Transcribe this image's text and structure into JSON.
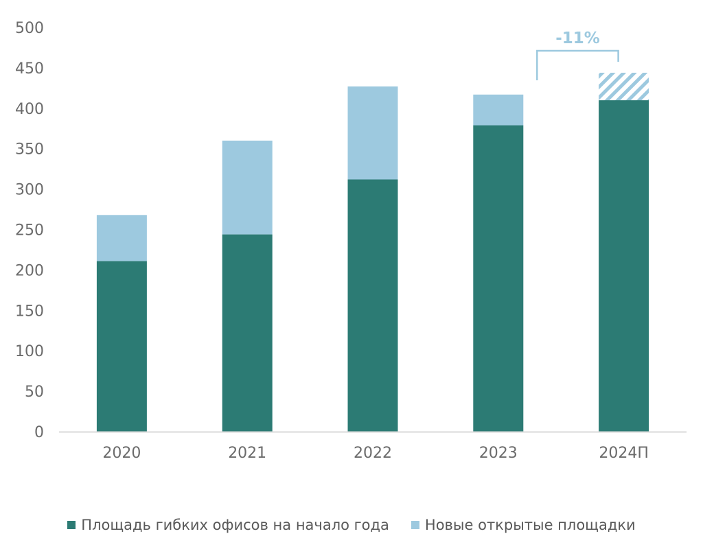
{
  "chart_data": {
    "type": "bar",
    "stacked": true,
    "categories": [
      "2020",
      "2021",
      "2022",
      "2023",
      "2024П"
    ],
    "series": [
      {
        "name": "Площадь гибких офисов на начало года",
        "values": [
          211,
          244,
          312,
          379,
          410
        ],
        "color": "#2c7b74"
      },
      {
        "name": "Новые открытые площадки",
        "values": [
          57,
          116,
          115,
          38,
          34
        ],
        "color": "#9dc9df",
        "hatched_last": true
      }
    ],
    "ylim": [
      0,
      500
    ],
    "yticks": [
      0,
      50,
      100,
      150,
      200,
      250,
      300,
      350,
      400,
      450,
      500
    ],
    "grid": false,
    "legend": "bottom",
    "annotation": {
      "text": "-11%",
      "from_category": "2023",
      "to_category": "2024П",
      "style": "bracket"
    }
  }
}
